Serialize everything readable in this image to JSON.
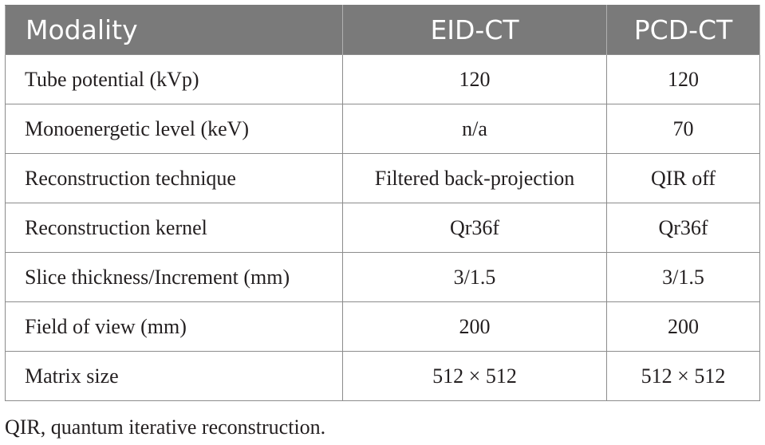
{
  "table": {
    "headers": [
      "Modality",
      "EID-CT",
      "PCD-CT"
    ],
    "rows": [
      {
        "parameter": "Tube potential (kVp)",
        "eid_ct": "120",
        "pcd_ct": "120"
      },
      {
        "parameter": "Monoenergetic level (keV)",
        "eid_ct": "n/a",
        "pcd_ct": "70"
      },
      {
        "parameter": "Reconstruction technique",
        "eid_ct": "Filtered back-projection",
        "pcd_ct": "QIR off"
      },
      {
        "parameter": "Reconstruction kernel",
        "eid_ct": "Qr36f",
        "pcd_ct": "Qr36f"
      },
      {
        "parameter": "Slice thickness/Increment (mm)",
        "eid_ct": "3/1.5",
        "pcd_ct": "3/1.5"
      },
      {
        "parameter": "Field of view (mm)",
        "eid_ct": "200",
        "pcd_ct": "200"
      },
      {
        "parameter": "Matrix size",
        "eid_ct": "512 × 512",
        "pcd_ct": "512 × 512"
      }
    ]
  },
  "footnote": "QIR, quantum iterative reconstruction.",
  "colors": {
    "header_background": "#7a7a7a",
    "header_text": "#ffffff",
    "body_text": "#231f20",
    "grid_lines": "#8c8c8c"
  }
}
